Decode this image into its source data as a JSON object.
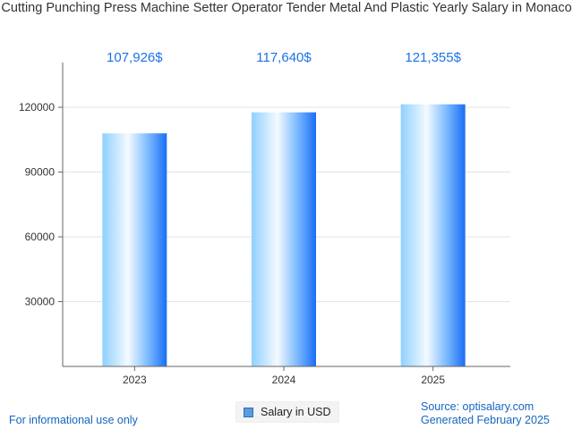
{
  "chart_data": {
    "type": "bar",
    "title": "Cutting Punching Press Machine Setter Operator Tender Metal And Plastic Yearly Salary in Monaco",
    "categories": [
      "2023",
      "2024",
      "2025"
    ],
    "series": [
      {
        "name": "Salary in USD",
        "values": [
          107926,
          117640,
          121355
        ],
        "labels": [
          "107,926$",
          "117,640$",
          "121,355$"
        ]
      }
    ],
    "yticks": [
      "30000",
      "60000",
      "90000",
      "120000"
    ],
    "ylim": [
      0,
      120000
    ],
    "grid": true,
    "legend": "bottom-center",
    "colors": {
      "bar_light": "#e8f4ff",
      "bar_dark": "#1a6ef5",
      "label": "#1a73e8"
    }
  },
  "footer": {
    "left": "For informational use only",
    "source": "Source: optisalary.com",
    "generated": "Generated February 2025"
  }
}
